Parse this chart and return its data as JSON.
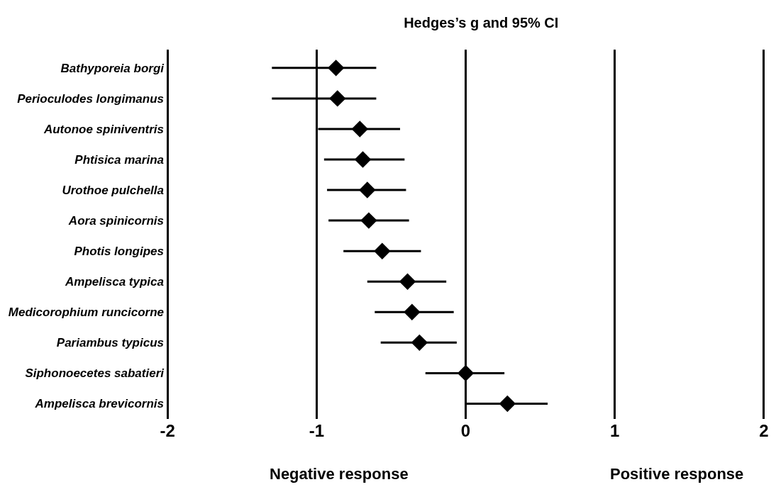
{
  "chart_data": {
    "type": "scatter",
    "orientation": "horizontal",
    "title": "Hedges’s g and 95% CI",
    "categories": [
      "Bathyporeia borgi",
      "Perioculodes longimanus",
      "Autonoe spiniventris",
      "Phtisica marina",
      "Urothoe pulchella",
      "Aora spinicornis",
      "Photis longipes",
      "Ampelisca typica",
      "Medicorophium runcicorne",
      "Pariambus typicus",
      "Siphonoecetes sabatieri",
      "Ampelisca brevicornis"
    ],
    "values": [
      -0.87,
      -0.86,
      -0.71,
      -0.69,
      -0.66,
      -0.65,
      -0.56,
      -0.39,
      -0.36,
      -0.31,
      0.0,
      0.28
    ],
    "errors": [
      [
        -1.3,
        -0.6
      ],
      [
        -1.3,
        -0.6
      ],
      [
        -0.99,
        -0.44
      ],
      [
        -0.95,
        -0.41
      ],
      [
        -0.93,
        -0.4
      ],
      [
        -0.92,
        -0.38
      ],
      [
        -0.82,
        -0.3
      ],
      [
        -0.66,
        -0.13
      ],
      [
        -0.61,
        -0.08
      ],
      [
        -0.57,
        -0.06
      ],
      [
        -0.27,
        0.26
      ],
      [
        0.0,
        0.55
      ]
    ],
    "color": "#000000",
    "marker": "diamond",
    "xlim": [
      -2.02,
      2.02
    ],
    "xticks": [
      -2,
      -1,
      0,
      1,
      2
    ],
    "grid": "x",
    "legend": false,
    "annotations": [
      "Negative response",
      "Positive response"
    ]
  }
}
